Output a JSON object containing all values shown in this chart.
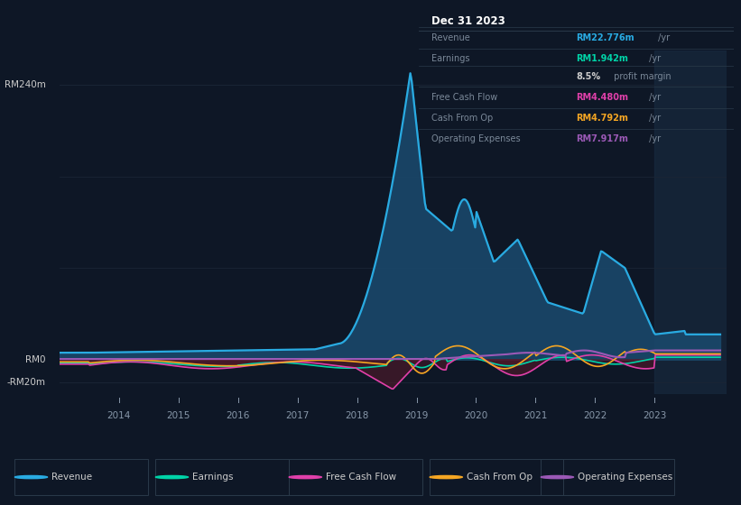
{
  "background_color": "#0e1726",
  "plot_bg_color": "#0e1726",
  "grid_color": "#1a2535",
  "text_color": "#8898aa",
  "ylim": [
    -30,
    270
  ],
  "revenue_color": "#29abe2",
  "earnings_color": "#00d4a8",
  "fcf_color": "#e040aa",
  "cashfromop_color": "#f5a623",
  "opex_color": "#9b59b6",
  "fill_revenue_color": "#1a4a6e",
  "fill_neg_color": "#5a1a2a",
  "info_box_bg": "#111820",
  "info_box_border": "#2a3a4a",
  "legend_entries": [
    {
      "label": "Revenue",
      "color": "#29abe2"
    },
    {
      "label": "Earnings",
      "color": "#00d4a8"
    },
    {
      "label": "Free Cash Flow",
      "color": "#e040aa"
    },
    {
      "label": "Cash From Op",
      "color": "#f5a623"
    },
    {
      "label": "Operating Expenses",
      "color": "#9b59b6"
    }
  ]
}
